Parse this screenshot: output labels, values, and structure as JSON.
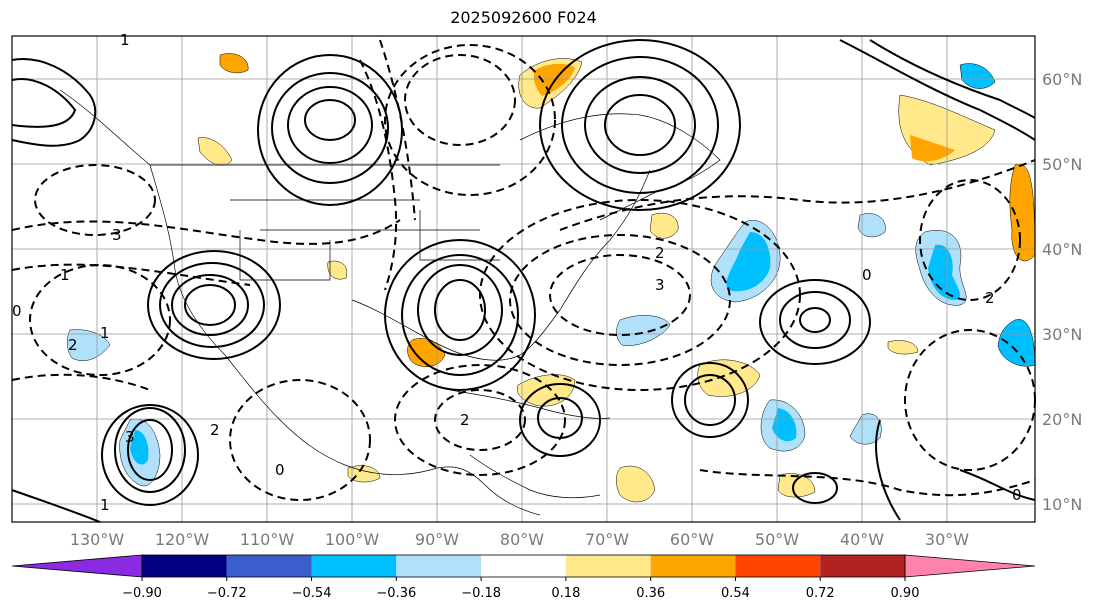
{
  "title": "2025092600 F024",
  "map": {
    "lon_ticks": [
      "130°W",
      "120°W",
      "110°W",
      "100°W",
      "90°W",
      "80°W",
      "70°W",
      "60°W",
      "50°W",
      "40°W",
      "30°W"
    ],
    "lat_ticks": [
      "10°N",
      "20°N",
      "30°N",
      "40°N",
      "50°N",
      "60°N"
    ],
    "contour_labels": [
      "1",
      "3",
      "1",
      "2",
      "1",
      "3",
      "2",
      "0",
      "0",
      "2",
      "1",
      "2",
      "3",
      "0",
      "0",
      "2"
    ]
  },
  "colorbar": {
    "labels": [
      "−0.90",
      "−0.72",
      "−0.54",
      "−0.36",
      "−0.18",
      "0.18",
      "0.36",
      "0.54",
      "0.72",
      "0.90"
    ],
    "colors": [
      "#8a2be2",
      "#000080",
      "#3a5fcd",
      "#00bfff",
      "#b0e0fa",
      "#ffffff",
      "#ffe98a",
      "#ffa500",
      "#ff4500",
      "#b22222",
      "#ff82ab"
    ],
    "extend": "both"
  },
  "fill_colors": {
    "light_blue": "#b0e0fa",
    "blue": "#00bfff",
    "yellow": "#ffe98a",
    "orange": "#ffa500",
    "dark_blue": "#3a5fcd"
  }
}
